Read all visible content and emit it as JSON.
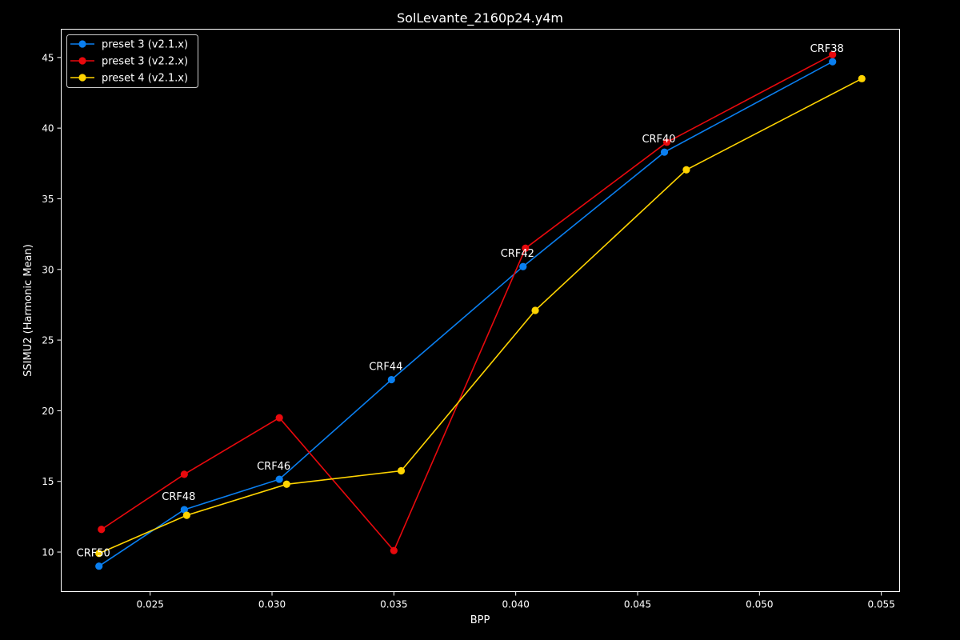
{
  "chart_data": {
    "type": "line",
    "title": "SolLevante_2160p24.y4m",
    "xlabel": "BPP",
    "ylabel": "SSIMU2 (Harmonic Mean)",
    "xlim": [
      0.02135,
      0.05575
    ],
    "ylim": [
      7.2,
      47.0
    ],
    "x_ticks": [
      0.025,
      0.03,
      0.035,
      0.04,
      0.045,
      0.05,
      0.055
    ],
    "x_tick_labels": [
      "0.025",
      "0.030",
      "0.035",
      "0.040",
      "0.045",
      "0.050",
      "0.055"
    ],
    "y_ticks": [
      10,
      15,
      20,
      25,
      30,
      35,
      40,
      45
    ],
    "y_tick_labels": [
      "10",
      "15",
      "20",
      "25",
      "30",
      "35",
      "40",
      "45"
    ],
    "grid": false,
    "legend_position": "top-left",
    "series": [
      {
        "name": "preset 3 (v2.1.x)",
        "color": "#0a7ff0",
        "points": [
          [
            0.0229,
            9.0
          ],
          [
            0.0264,
            13.0
          ],
          [
            0.0303,
            15.15
          ],
          [
            0.0349,
            22.2
          ],
          [
            0.0403,
            30.2
          ],
          [
            0.0461,
            38.3
          ],
          [
            0.053,
            44.7
          ]
        ]
      },
      {
        "name": "preset 3 (v2.2.x)",
        "color": "#e8090d",
        "points": [
          [
            0.023,
            11.6
          ],
          [
            0.0264,
            15.5
          ],
          [
            0.0303,
            19.5
          ],
          [
            0.035,
            10.1
          ],
          [
            0.0404,
            31.5
          ],
          [
            0.0462,
            39.0
          ],
          [
            0.053,
            45.2
          ]
        ]
      },
      {
        "name": "preset 4 (v2.1.x)",
        "color": "#ffd400",
        "points": [
          [
            0.0229,
            9.9
          ],
          [
            0.0265,
            12.6
          ],
          [
            0.0306,
            14.8
          ],
          [
            0.0353,
            15.75
          ],
          [
            0.0408,
            27.1
          ],
          [
            0.047,
            37.05
          ],
          [
            0.0542,
            43.5
          ]
        ]
      }
    ],
    "annotations": [
      {
        "text": "CRF50",
        "x": 0.0229,
        "y": 9.0
      },
      {
        "text": "CRF48",
        "x": 0.0264,
        "y": 13.0
      },
      {
        "text": "CRF46",
        "x": 0.0303,
        "y": 15.15
      },
      {
        "text": "CRF44",
        "x": 0.0349,
        "y": 22.2
      },
      {
        "text": "CRF42",
        "x": 0.0403,
        "y": 30.2
      },
      {
        "text": "CRF40",
        "x": 0.0461,
        "y": 38.3
      },
      {
        "text": "CRF38",
        "x": 0.053,
        "y": 44.7
      }
    ]
  }
}
